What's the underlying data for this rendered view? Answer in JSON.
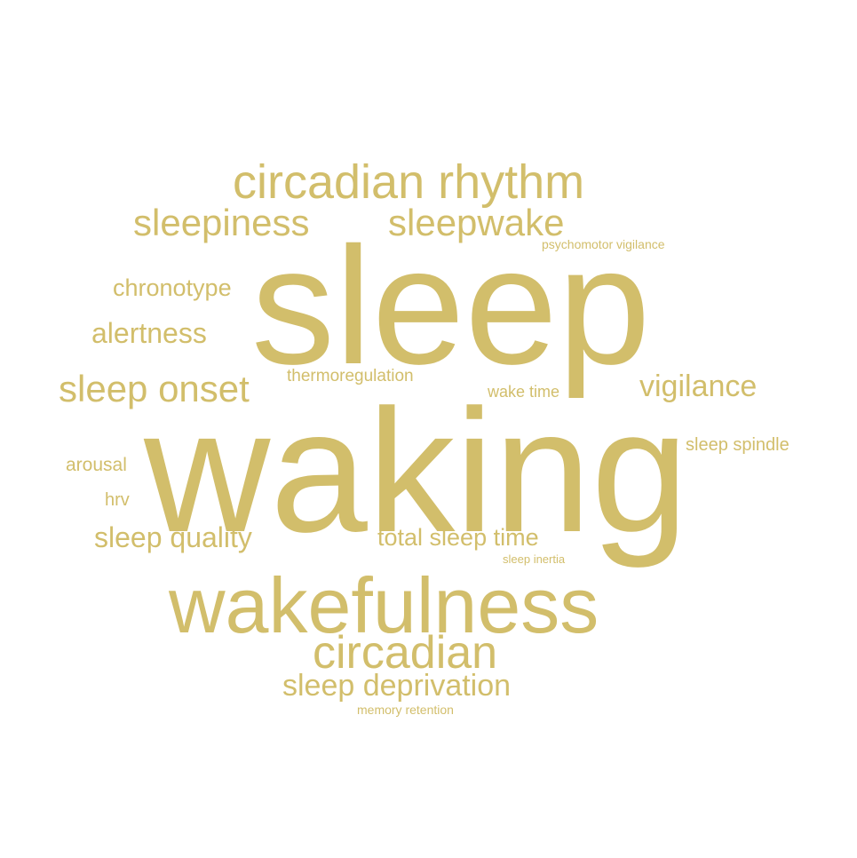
{
  "word_color": "#d2be6b",
  "words": {
    "sleep": "sleep",
    "waking": "waking",
    "wakefulness": "wakefulness",
    "circadian_rhythm": "circadian rhythm",
    "circadian": "circadian",
    "sleepiness": "sleepiness",
    "sleepwake": "sleepwake",
    "sleep_onset": "sleep onset",
    "sleep_deprivation": "sleep deprivation",
    "vigilance": "vigilance",
    "alertness": "alertness",
    "sleep_quality": "sleep quality",
    "chronotype": "chronotype",
    "total_sleep_time": "total sleep time",
    "sleep_spindle": "sleep spindle",
    "thermoregulation": "thermoregulation",
    "arousal": "arousal",
    "wake_time": "wake time",
    "hrv": "hrv",
    "psychomotor_vigilance": "psychomotor vigilance",
    "sleep_inertia": "sleep inertia",
    "memory_retention": "memory retention"
  }
}
